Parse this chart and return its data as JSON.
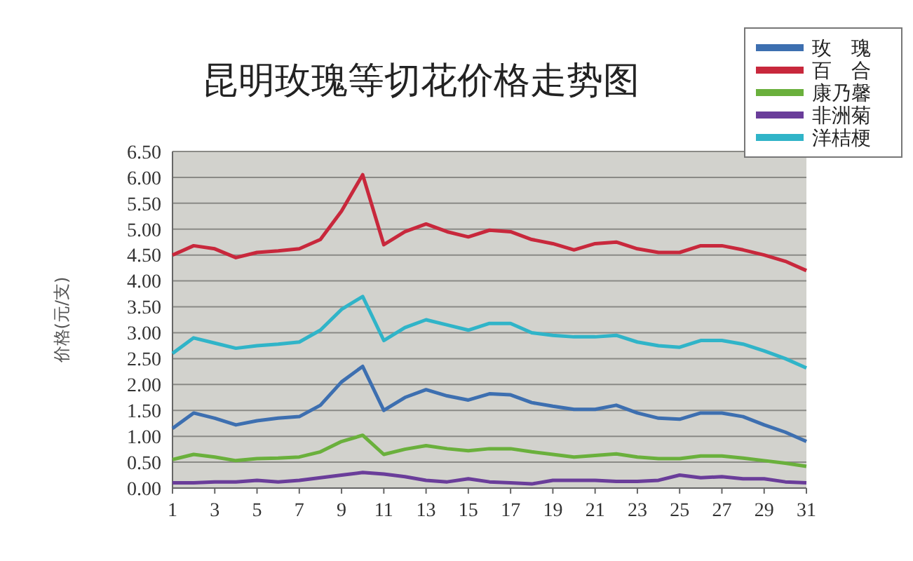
{
  "chart_data": {
    "type": "line",
    "title": "昆明玫瑰等切花价格走势图",
    "ylabel": "价格(元/支)",
    "x": [
      1,
      2,
      3,
      4,
      5,
      6,
      7,
      8,
      9,
      10,
      11,
      12,
      13,
      14,
      15,
      16,
      17,
      18,
      19,
      20,
      21,
      22,
      23,
      24,
      25,
      26,
      27,
      28,
      29,
      30,
      31
    ],
    "xlim": [
      1,
      31
    ],
    "xticks": [
      1,
      3,
      5,
      7,
      9,
      11,
      13,
      15,
      17,
      19,
      21,
      23,
      25,
      27,
      29,
      31
    ],
    "ylim": [
      0,
      6.5
    ],
    "yticks": [
      {
        "value": 0,
        "label": "0.00"
      },
      {
        "value": 0.5,
        "label": "0.50"
      },
      {
        "value": 1,
        "label": "1.00"
      },
      {
        "value": 1.5,
        "label": "1.50"
      },
      {
        "value": 2,
        "label": "2.00"
      },
      {
        "value": 2.5,
        "label": "2.50"
      },
      {
        "value": 3,
        "label": "3.00"
      },
      {
        "value": 3.5,
        "label": "3.50"
      },
      {
        "value": 4,
        "label": "4.00"
      },
      {
        "value": 4.5,
        "label": "4.50"
      },
      {
        "value": 5,
        "label": "5.00"
      },
      {
        "value": 5.5,
        "label": "5.50"
      },
      {
        "value": 6,
        "label": "6.00"
      },
      {
        "value": 6.5,
        "label": "6.50"
      }
    ],
    "grid": "y",
    "legend": "top right",
    "marker": "none",
    "line_style": "solid",
    "series": [
      {
        "name": "玫　瑰",
        "color": "#3d6fb0",
        "values": [
          1.15,
          1.45,
          1.35,
          1.22,
          1.3,
          1.35,
          1.38,
          1.6,
          2.05,
          2.35,
          1.5,
          1.75,
          1.9,
          1.78,
          1.7,
          1.82,
          1.8,
          1.65,
          1.58,
          1.52,
          1.52,
          1.6,
          1.45,
          1.35,
          1.33,
          1.45,
          1.45,
          1.38,
          1.22,
          1.08,
          0.9
        ]
      },
      {
        "name": "百　合",
        "color": "#c8283c",
        "values": [
          4.5,
          4.68,
          4.62,
          4.45,
          4.55,
          4.58,
          4.62,
          4.8,
          5.35,
          6.05,
          4.7,
          4.95,
          5.1,
          4.95,
          4.85,
          4.98,
          4.95,
          4.8,
          4.72,
          4.6,
          4.72,
          4.75,
          4.62,
          4.55,
          4.55,
          4.68,
          4.68,
          4.6,
          4.5,
          4.38,
          4.2
        ]
      },
      {
        "name": "康乃馨",
        "color": "#6ab03c",
        "values": [
          0.55,
          0.65,
          0.6,
          0.53,
          0.57,
          0.58,
          0.6,
          0.7,
          0.9,
          1.02,
          0.65,
          0.75,
          0.82,
          0.76,
          0.72,
          0.76,
          0.76,
          0.7,
          0.65,
          0.6,
          0.63,
          0.66,
          0.6,
          0.57,
          0.57,
          0.62,
          0.62,
          0.58,
          0.53,
          0.48,
          0.42
        ]
      },
      {
        "name": "非洲菊",
        "color": "#6a3d9a",
        "values": [
          0.1,
          0.1,
          0.12,
          0.12,
          0.15,
          0.12,
          0.15,
          0.2,
          0.25,
          0.3,
          0.27,
          0.22,
          0.15,
          0.12,
          0.18,
          0.12,
          0.1,
          0.08,
          0.15,
          0.15,
          0.15,
          0.13,
          0.13,
          0.15,
          0.25,
          0.2,
          0.22,
          0.18,
          0.18,
          0.12,
          0.1
        ]
      },
      {
        "name": "洋桔梗",
        "color": "#30b4c8",
        "values": [
          2.6,
          2.9,
          2.8,
          2.7,
          2.75,
          2.78,
          2.82,
          3.05,
          3.45,
          3.7,
          2.85,
          3.1,
          3.25,
          3.15,
          3.05,
          3.18,
          3.18,
          3.0,
          2.95,
          2.92,
          2.92,
          2.95,
          2.82,
          2.75,
          2.72,
          2.85,
          2.85,
          2.78,
          2.65,
          2.5,
          2.32
        ]
      }
    ]
  }
}
